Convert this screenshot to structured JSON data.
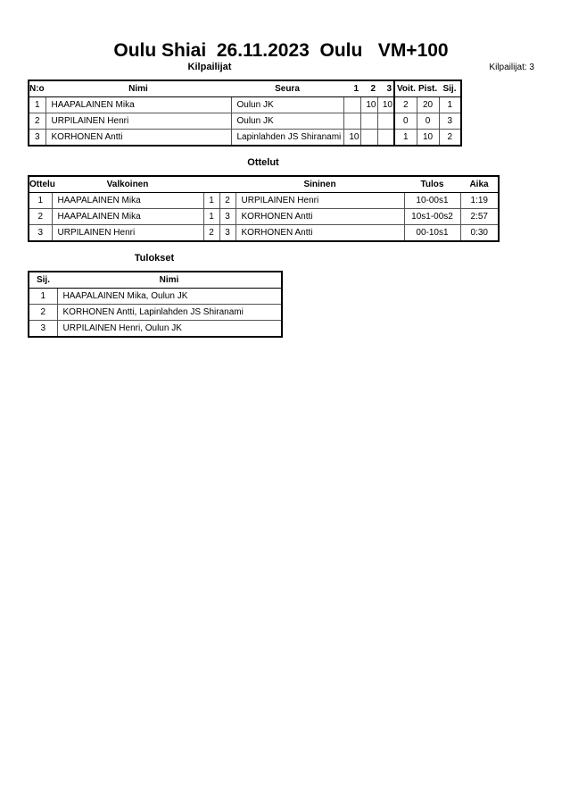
{
  "title": "Oulu Shiai  26.11.2023  Oulu   VM+100",
  "competitors": {
    "heading": "Kilpailijat",
    "count_label": "Kilpailijat: 3",
    "headers": [
      "N:o",
      "Nimi",
      "Seura",
      "1",
      "2",
      "3",
      "Voit.",
      "Pist.",
      "Sij."
    ],
    "rows": [
      [
        "1",
        "HAAPALAINEN Mika",
        "Oulun JK",
        "",
        "10",
        "10",
        "2",
        "20",
        "1"
      ],
      [
        "2",
        "URPILAINEN Henri",
        "Oulun JK",
        "",
        "",
        "",
        "0",
        "0",
        "3"
      ],
      [
        "3",
        "KORHONEN Antti",
        "Lapinlahden JS Shiranami",
        "10",
        "",
        "",
        "1",
        "10",
        "2"
      ]
    ]
  },
  "matches": {
    "heading": "Ottelut",
    "headers": [
      "Ottelu",
      "Valkoinen",
      "",
      "",
      "Sininen",
      "Tulos",
      "Aika"
    ],
    "rows": [
      [
        "1",
        "HAAPALAINEN Mika",
        "1",
        "2",
        "URPILAINEN Henri",
        "10-00s1",
        "1:19"
      ],
      [
        "2",
        "HAAPALAINEN Mika",
        "1",
        "3",
        "KORHONEN Antti",
        "10s1-00s2",
        "2:57"
      ],
      [
        "3",
        "URPILAINEN Henri",
        "2",
        "3",
        "KORHONEN Antti",
        "00-10s1",
        "0:30"
      ]
    ]
  },
  "results": {
    "heading": "Tulokset",
    "headers": [
      "Sij.",
      "Nimi"
    ],
    "rows": [
      [
        "1",
        "HAAPALAINEN Mika, Oulun JK"
      ],
      [
        "2",
        "KORHONEN Antti, Lapinlahden JS Shiranami"
      ],
      [
        "3",
        "URPILAINEN Henri, Oulun JK"
      ]
    ]
  }
}
